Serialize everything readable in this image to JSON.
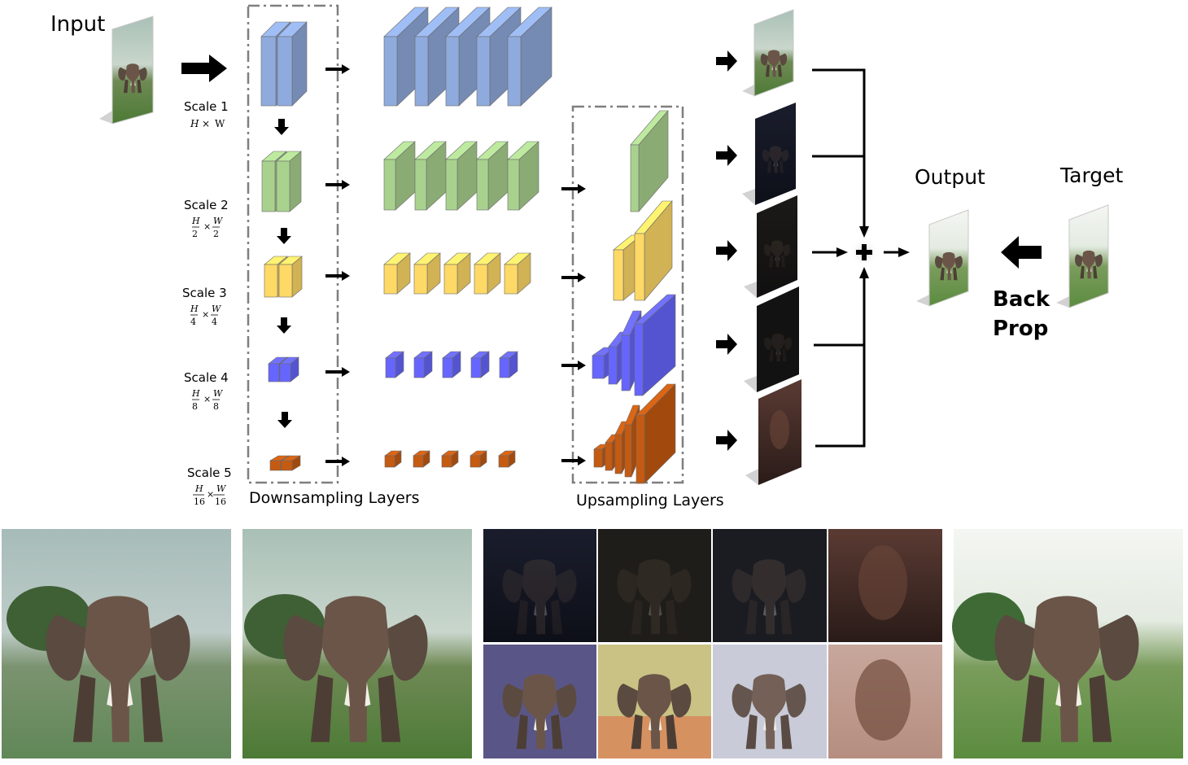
{
  "labels": {
    "input": "Input",
    "output": "Output",
    "target": "Target",
    "back": "Back",
    "prop": "Prop",
    "downsampling": "Downsampling Layers",
    "upsampling": "Upsampling Layers"
  },
  "scales": [
    {
      "label": "Scale 1",
      "h": "H",
      "w": "W",
      "times": "×",
      "num_h": "",
      "num_w": "",
      "den_h": "",
      "den_w": ""
    },
    {
      "label": "Scale 2",
      "times": "×",
      "num_h": "H",
      "den_h": "2",
      "num_w": "W",
      "den_w": "2"
    },
    {
      "label": "Scale 3",
      "times": "×",
      "num_h": "H",
      "den_h": "4",
      "num_w": "W",
      "den_w": "4"
    },
    {
      "label": "Scale 4",
      "times": "×",
      "num_h": "H",
      "den_h": "8",
      "num_w": "W",
      "den_w": "8"
    },
    {
      "label": "Scale 5",
      "times": "×",
      "num_h": "H",
      "den_h": "16",
      "num_w": "W",
      "den_w": "16"
    }
  ],
  "colors": {
    "scale1": "#8faadc",
    "scale2": "#a9d18e",
    "scale3": "#ffd966",
    "scale4": "#6666ff",
    "scale5": "#c55a11",
    "dashed_box": "#7f7f7f"
  },
  "icons": {
    "arrow": "right-arrow-icon",
    "down_arrow": "down-arrow-icon",
    "sum": "plus-circle-icon"
  }
}
